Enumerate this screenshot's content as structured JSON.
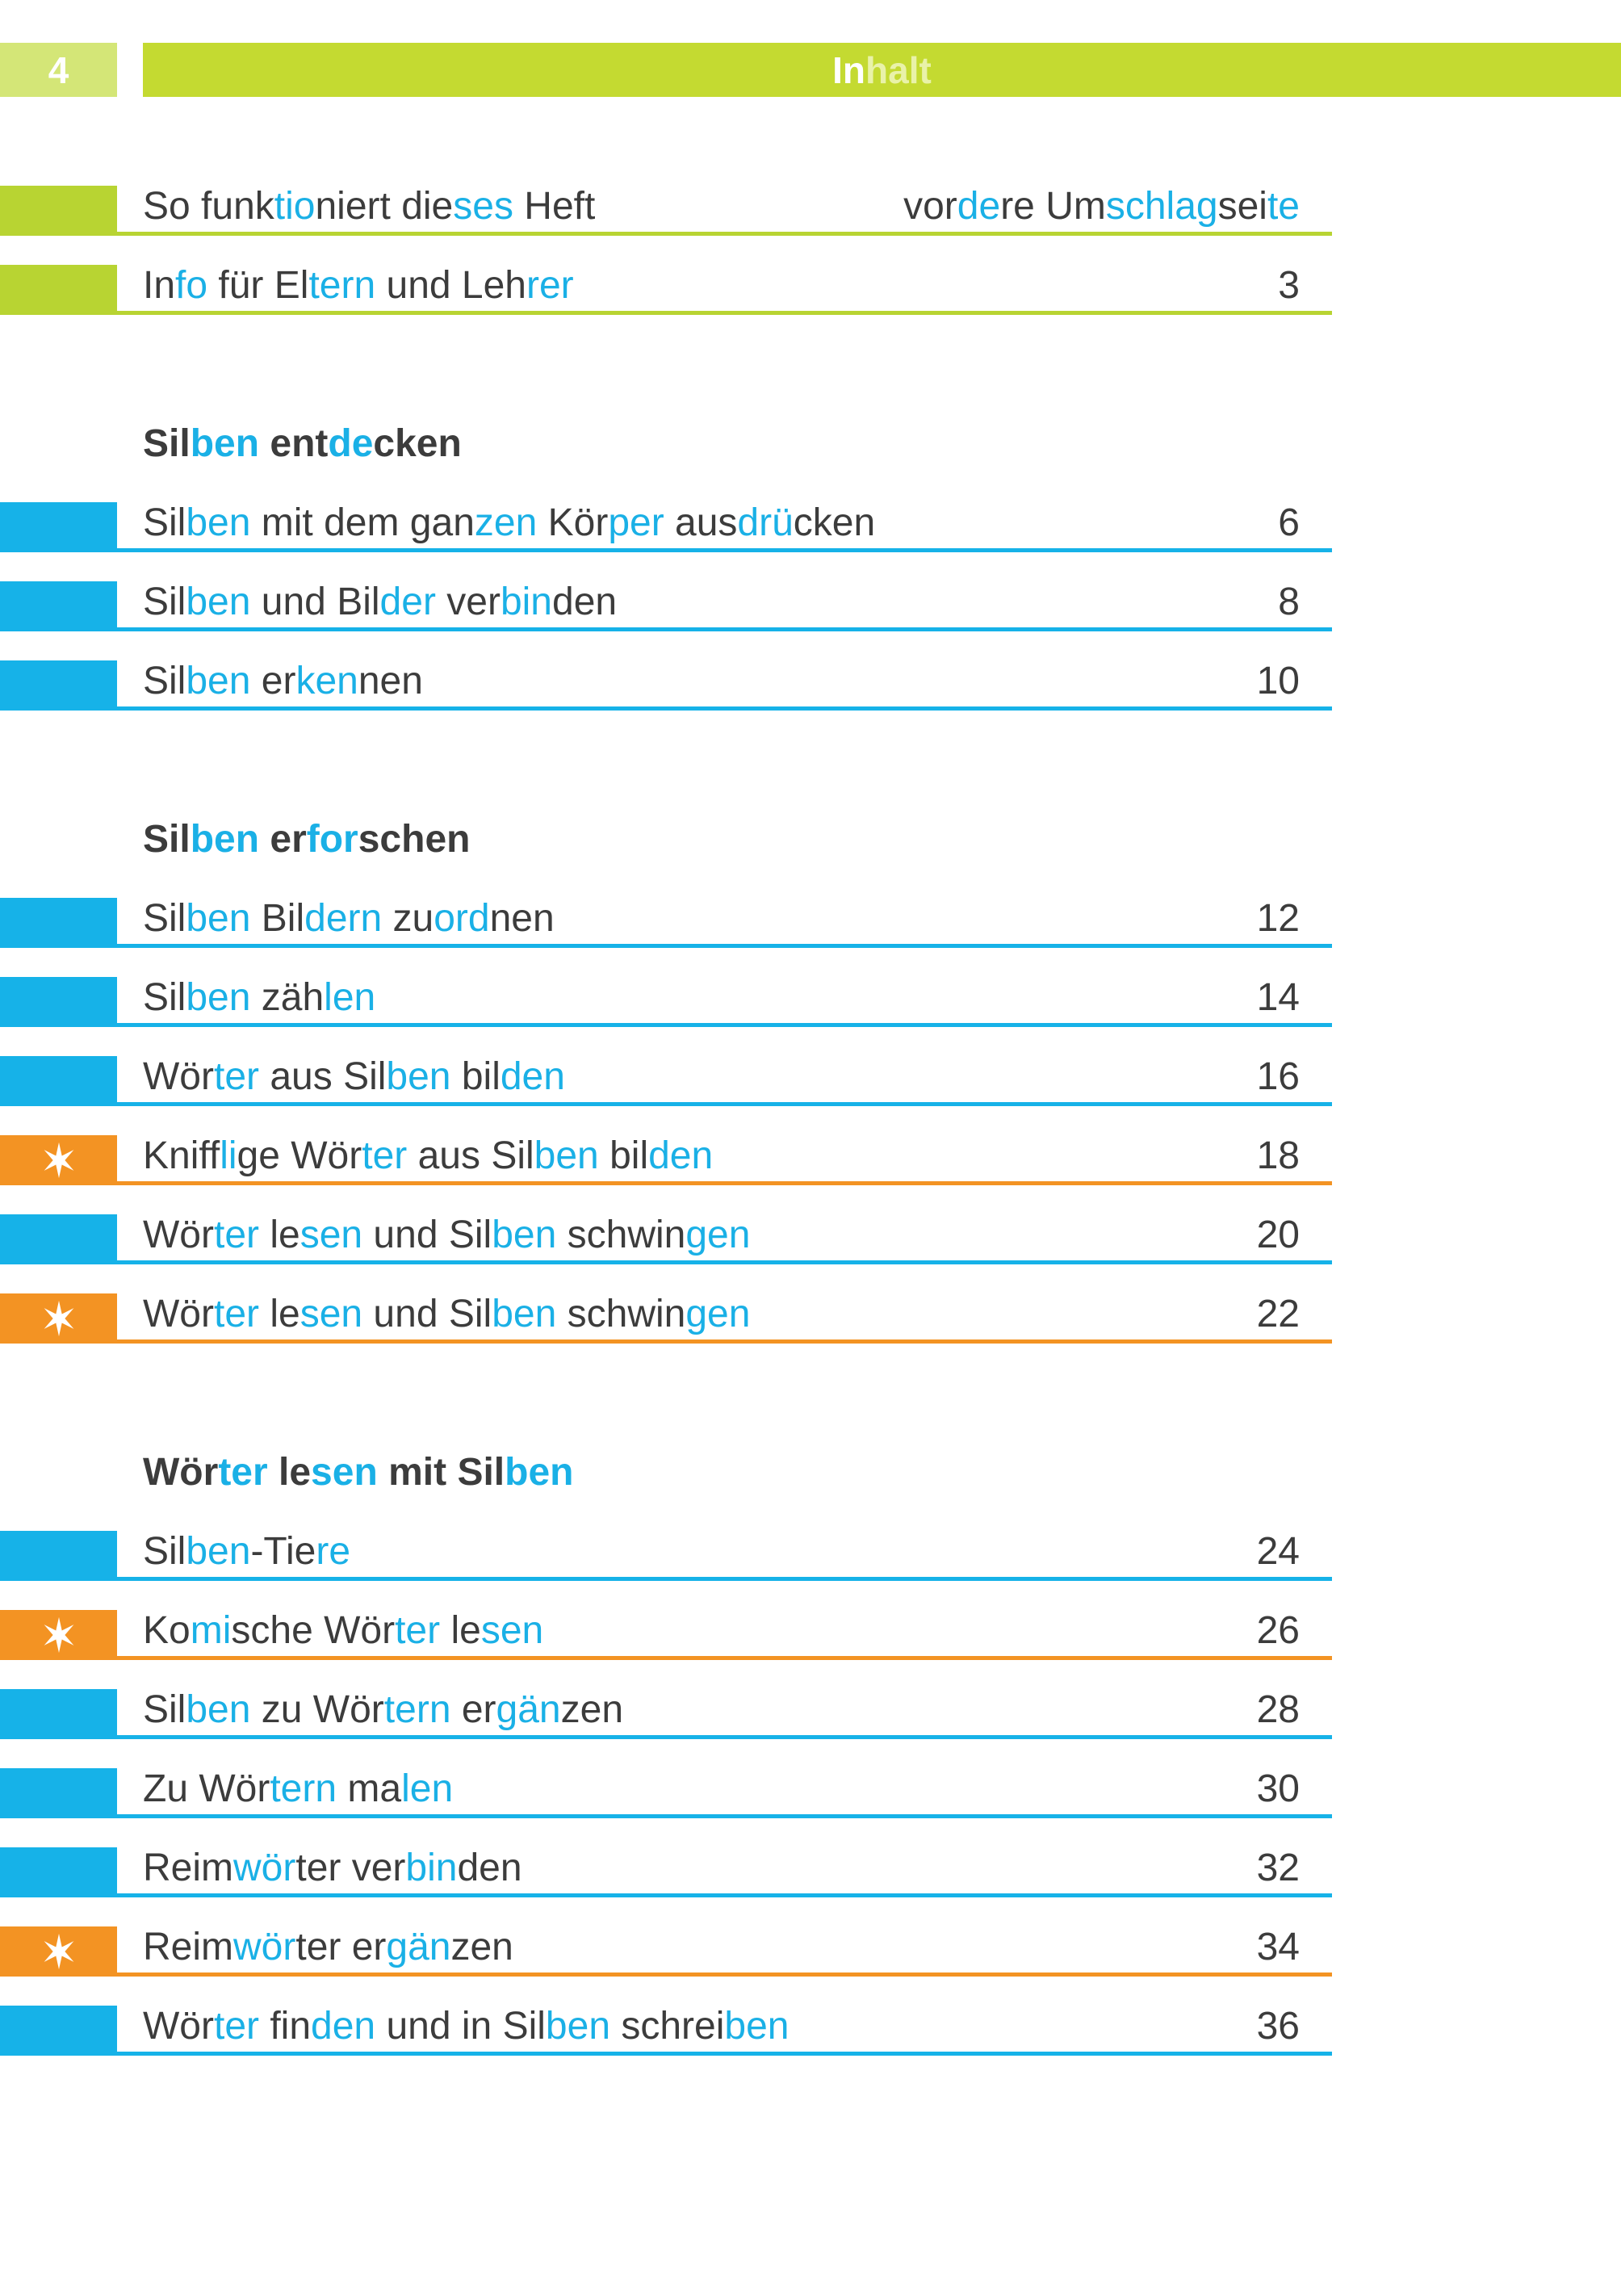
{
  "header": {
    "page_number": "4",
    "title": [
      {
        "t": "In",
        "hl": false
      },
      {
        "t": "halt",
        "hl": true
      }
    ]
  },
  "sections": [
    {
      "heading": null,
      "entries": [
        {
          "type": "green",
          "text": [
            {
              "t": "So funk",
              "hl": false
            },
            {
              "t": "tio",
              "hl": true
            },
            {
              "t": "niert die",
              "hl": false
            },
            {
              "t": "ses",
              "hl": true
            },
            {
              "t": " Heft",
              "hl": false
            }
          ],
          "page": [
            {
              "t": "vor",
              "hl": false
            },
            {
              "t": "de",
              "hl": true
            },
            {
              "t": "re Um",
              "hl": false
            },
            {
              "t": "schlag",
              "hl": true
            },
            {
              "t": "sei",
              "hl": false
            },
            {
              "t": "te",
              "hl": true
            }
          ]
        },
        {
          "type": "green",
          "text": [
            {
              "t": "In",
              "hl": false
            },
            {
              "t": "fo",
              "hl": true
            },
            {
              "t": " für El",
              "hl": false
            },
            {
              "t": "tern",
              "hl": true
            },
            {
              "t": " und Leh",
              "hl": false
            },
            {
              "t": "rer",
              "hl": true
            }
          ],
          "page": [
            {
              "t": "3",
              "hl": false
            }
          ]
        }
      ]
    },
    {
      "heading": [
        {
          "t": "Sil",
          "hl": false
        },
        {
          "t": "ben",
          "hl": true
        },
        {
          "t": " ent",
          "hl": false
        },
        {
          "t": "de",
          "hl": true
        },
        {
          "t": "cken",
          "hl": false
        }
      ],
      "entries": [
        {
          "type": "blue",
          "text": [
            {
              "t": "Sil",
              "hl": false
            },
            {
              "t": "ben",
              "hl": true
            },
            {
              "t": " mit dem gan",
              "hl": false
            },
            {
              "t": "zen",
              "hl": true
            },
            {
              "t": " Kör",
              "hl": false
            },
            {
              "t": "per",
              "hl": true
            },
            {
              "t": " aus",
              "hl": false
            },
            {
              "t": "drü",
              "hl": true
            },
            {
              "t": "cken",
              "hl": false
            }
          ],
          "page": [
            {
              "t": "6",
              "hl": false
            }
          ]
        },
        {
          "type": "blue",
          "text": [
            {
              "t": "Sil",
              "hl": false
            },
            {
              "t": "ben",
              "hl": true
            },
            {
              "t": " und Bil",
              "hl": false
            },
            {
              "t": "der",
              "hl": true
            },
            {
              "t": " ver",
              "hl": false
            },
            {
              "t": "bin",
              "hl": true
            },
            {
              "t": "den",
              "hl": false
            }
          ],
          "page": [
            {
              "t": "8",
              "hl": false
            }
          ]
        },
        {
          "type": "blue",
          "text": [
            {
              "t": "Sil",
              "hl": false
            },
            {
              "t": "ben",
              "hl": true
            },
            {
              "t": " er",
              "hl": false
            },
            {
              "t": "ken",
              "hl": true
            },
            {
              "t": "nen",
              "hl": false
            }
          ],
          "page": [
            {
              "t": "10",
              "hl": false
            }
          ]
        }
      ]
    },
    {
      "heading": [
        {
          "t": "Sil",
          "hl": false
        },
        {
          "t": "ben",
          "hl": true
        },
        {
          "t": " er",
          "hl": false
        },
        {
          "t": "for",
          "hl": true
        },
        {
          "t": "schen",
          "hl": false
        }
      ],
      "entries": [
        {
          "type": "blue",
          "text": [
            {
              "t": "Sil",
              "hl": false
            },
            {
              "t": "ben",
              "hl": true
            },
            {
              "t": " Bil",
              "hl": false
            },
            {
              "t": "dern",
              "hl": true
            },
            {
              "t": " zu",
              "hl": false
            },
            {
              "t": "ord",
              "hl": true
            },
            {
              "t": "nen",
              "hl": false
            }
          ],
          "page": [
            {
              "t": "12",
              "hl": false
            }
          ]
        },
        {
          "type": "blue",
          "text": [
            {
              "t": "Sil",
              "hl": false
            },
            {
              "t": "ben",
              "hl": true
            },
            {
              "t": " zäh",
              "hl": false
            },
            {
              "t": "len",
              "hl": true
            }
          ],
          "page": [
            {
              "t": "14",
              "hl": false
            }
          ]
        },
        {
          "type": "blue",
          "text": [
            {
              "t": "Wör",
              "hl": false
            },
            {
              "t": "ter",
              "hl": true
            },
            {
              "t": " aus Sil",
              "hl": false
            },
            {
              "t": "ben",
              "hl": true
            },
            {
              "t": " bil",
              "hl": false
            },
            {
              "t": "den",
              "hl": true
            }
          ],
          "page": [
            {
              "t": "16",
              "hl": false
            }
          ]
        },
        {
          "type": "orange",
          "text": [
            {
              "t": "Kniff",
              "hl": false
            },
            {
              "t": "li",
              "hl": true
            },
            {
              "t": "ge Wör",
              "hl": false
            },
            {
              "t": "ter",
              "hl": true
            },
            {
              "t": " aus Sil",
              "hl": false
            },
            {
              "t": "ben",
              "hl": true
            },
            {
              "t": " bil",
              "hl": false
            },
            {
              "t": "den",
              "hl": true
            }
          ],
          "page": [
            {
              "t": "18",
              "hl": false
            }
          ]
        },
        {
          "type": "blue",
          "text": [
            {
              "t": "Wör",
              "hl": false
            },
            {
              "t": "ter",
              "hl": true
            },
            {
              "t": " le",
              "hl": false
            },
            {
              "t": "sen",
              "hl": true
            },
            {
              "t": " und Sil",
              "hl": false
            },
            {
              "t": "ben",
              "hl": true
            },
            {
              "t": " schwin",
              "hl": false
            },
            {
              "t": "gen",
              "hl": true
            }
          ],
          "page": [
            {
              "t": "20",
              "hl": false
            }
          ]
        },
        {
          "type": "orange",
          "text": [
            {
              "t": "Wör",
              "hl": false
            },
            {
              "t": "ter",
              "hl": true
            },
            {
              "t": " le",
              "hl": false
            },
            {
              "t": "sen",
              "hl": true
            },
            {
              "t": " und Sil",
              "hl": false
            },
            {
              "t": "ben",
              "hl": true
            },
            {
              "t": " schwin",
              "hl": false
            },
            {
              "t": "gen",
              "hl": true
            }
          ],
          "page": [
            {
              "t": "22",
              "hl": false
            }
          ]
        }
      ]
    },
    {
      "heading": [
        {
          "t": "Wör",
          "hl": false
        },
        {
          "t": "ter",
          "hl": true
        },
        {
          "t": " le",
          "hl": false
        },
        {
          "t": "sen",
          "hl": true
        },
        {
          "t": " mit Sil",
          "hl": false
        },
        {
          "t": "ben",
          "hl": true
        }
      ],
      "entries": [
        {
          "type": "blue",
          "text": [
            {
              "t": "Sil",
              "hl": false
            },
            {
              "t": "ben",
              "hl": true
            },
            {
              "t": "-Tie",
              "hl": false
            },
            {
              "t": "re",
              "hl": true
            }
          ],
          "page": [
            {
              "t": "24",
              "hl": false
            }
          ]
        },
        {
          "type": "orange",
          "text": [
            {
              "t": "Ko",
              "hl": false
            },
            {
              "t": "mi",
              "hl": true
            },
            {
              "t": "sche Wör",
              "hl": false
            },
            {
              "t": "ter",
              "hl": true
            },
            {
              "t": " le",
              "hl": false
            },
            {
              "t": "sen",
              "hl": true
            }
          ],
          "page": [
            {
              "t": "26",
              "hl": false
            }
          ]
        },
        {
          "type": "blue",
          "text": [
            {
              "t": "Sil",
              "hl": false
            },
            {
              "t": "ben",
              "hl": true
            },
            {
              "t": " zu Wör",
              "hl": false
            },
            {
              "t": "tern",
              "hl": true
            },
            {
              "t": " er",
              "hl": false
            },
            {
              "t": "gän",
              "hl": true
            },
            {
              "t": "zen",
              "hl": false
            }
          ],
          "page": [
            {
              "t": "28",
              "hl": false
            }
          ]
        },
        {
          "type": "blue",
          "text": [
            {
              "t": "Zu Wör",
              "hl": false
            },
            {
              "t": "tern",
              "hl": true
            },
            {
              "t": " ma",
              "hl": false
            },
            {
              "t": "len",
              "hl": true
            }
          ],
          "page": [
            {
              "t": "30",
              "hl": false
            }
          ]
        },
        {
          "type": "blue",
          "text": [
            {
              "t": "Reim",
              "hl": false
            },
            {
              "t": "wör",
              "hl": true
            },
            {
              "t": "ter ver",
              "hl": false
            },
            {
              "t": "bin",
              "hl": true
            },
            {
              "t": "den",
              "hl": false
            }
          ],
          "page": [
            {
              "t": "32",
              "hl": false
            }
          ]
        },
        {
          "type": "orange",
          "text": [
            {
              "t": "Reim",
              "hl": false
            },
            {
              "t": "wör",
              "hl": true
            },
            {
              "t": "ter er",
              "hl": false
            },
            {
              "t": "gän",
              "hl": true
            },
            {
              "t": "zen",
              "hl": false
            }
          ],
          "page": [
            {
              "t": "34",
              "hl": false
            }
          ]
        },
        {
          "type": "blue",
          "text": [
            {
              "t": "Wör",
              "hl": false
            },
            {
              "t": "ter",
              "hl": true
            },
            {
              "t": " fin",
              "hl": false
            },
            {
              "t": "den",
              "hl": true
            },
            {
              "t": " und in Sil",
              "hl": false
            },
            {
              "t": "ben",
              "hl": true
            },
            {
              "t": " schrei",
              "hl": false
            },
            {
              "t": "ben",
              "hl": true
            }
          ],
          "page": [
            {
              "t": "36",
              "hl": false
            }
          ]
        }
      ]
    }
  ],
  "colors": {
    "green": "#b8d432",
    "blue": "#16b2e8",
    "orange": "#f39323",
    "syllable_highlight": "#1ab0e6",
    "text": "#3c3c3c"
  },
  "icons": {
    "orange": "star-icon"
  }
}
